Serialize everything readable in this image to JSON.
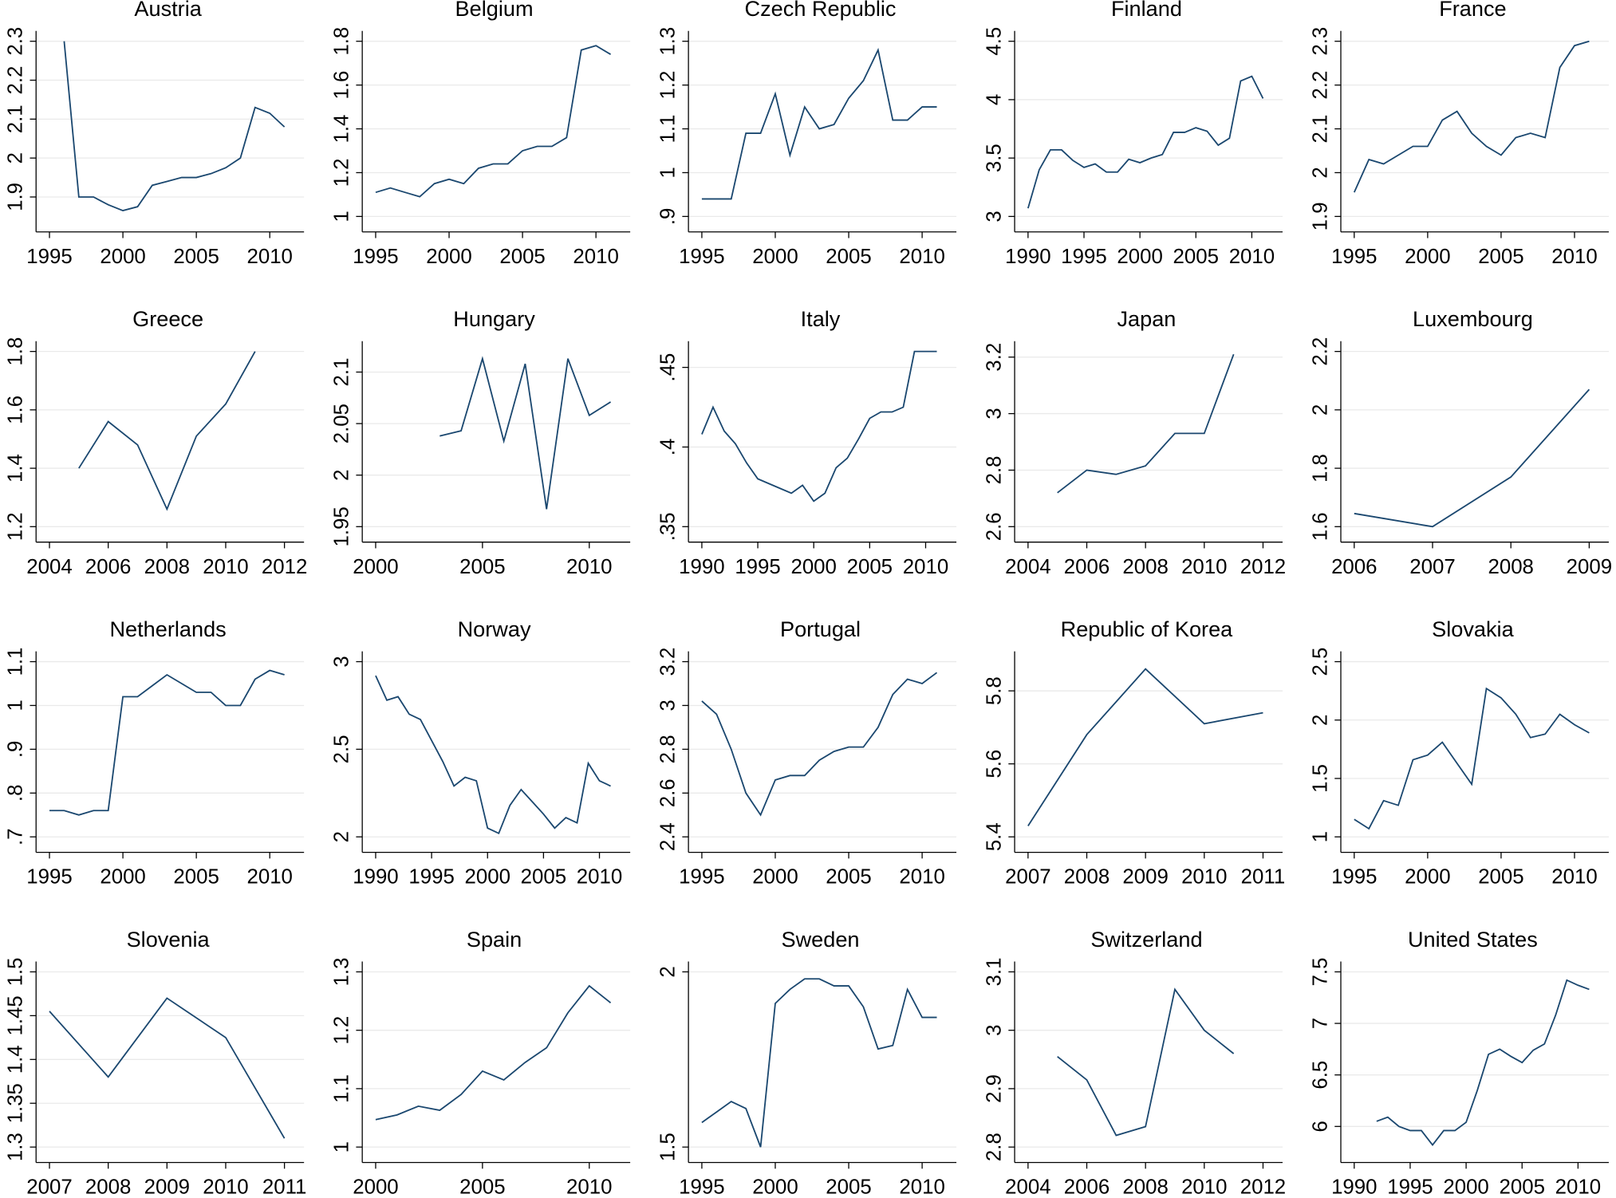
{
  "chart_data": [
    {
      "type": "line",
      "title": "Austria",
      "x": [
        1996,
        1997,
        1998,
        1999,
        2000,
        2001,
        2002,
        2003,
        2004,
        2005,
        2006,
        2007,
        2008,
        2009,
        2010,
        2011
      ],
      "values": [
        2.3,
        1.9,
        1.9,
        1.88,
        1.865,
        1.875,
        1.93,
        1.94,
        1.95,
        1.95,
        1.96,
        1.975,
        2.0,
        2.13,
        2.115,
        2.08
      ],
      "xlim": [
        1995,
        2011
      ],
      "ylim": [
        1.85,
        2.3
      ],
      "xticks": [
        1995,
        2000,
        2005,
        2010
      ],
      "yticks": [
        1.9,
        2,
        2.1,
        2.2,
        2.3
      ],
      "color": "#1a476f",
      "grid": true
    },
    {
      "type": "line",
      "title": "Belgium",
      "x": [
        1995,
        1996,
        1997,
        1998,
        1999,
        2000,
        2001,
        2002,
        2003,
        2004,
        2005,
        2006,
        2007,
        2008,
        2009,
        2010,
        2011
      ],
      "values": [
        1.11,
        1.13,
        1.11,
        1.09,
        1.15,
        1.17,
        1.15,
        1.22,
        1.24,
        1.24,
        1.3,
        1.32,
        1.32,
        1.36,
        1.76,
        1.78,
        1.74
      ],
      "xlim": [
        1995,
        2011
      ],
      "ylim": [
        1,
        1.8
      ],
      "xticks": [
        1995,
        2000,
        2005,
        2010
      ],
      "yticks": [
        1,
        1.2,
        1.4,
        1.6,
        1.8
      ],
      "color": "#1a476f",
      "grid": true
    },
    {
      "type": "line",
      "title": "Czech Republic",
      "x": [
        1995,
        1996,
        1997,
        1998,
        1999,
        2000,
        2001,
        2002,
        2003,
        2004,
        2005,
        2006,
        2007,
        2008,
        2009,
        2010,
        2011
      ],
      "values": [
        0.94,
        0.94,
        0.94,
        1.09,
        1.09,
        1.18,
        1.04,
        1.15,
        1.1,
        1.11,
        1.17,
        1.21,
        1.28,
        1.12,
        1.12,
        1.15,
        1.15
      ],
      "xlim": [
        1995,
        2011
      ],
      "ylim": [
        0.9,
        1.3
      ],
      "xticks": [
        1995,
        2000,
        2005,
        2010
      ],
      "yticks": [
        {
          "value": 0.9,
          "label": ".9"
        },
        1,
        1.1,
        1.2,
        1.3
      ],
      "color": "#1a476f",
      "grid": true
    },
    {
      "type": "line",
      "title": "Finland",
      "x": [
        1990,
        1991,
        1992,
        1993,
        1994,
        1995,
        1996,
        1997,
        1998,
        1999,
        2000,
        2001,
        2002,
        2003,
        2004,
        2005,
        2006,
        2007,
        2008,
        2009,
        2010,
        2011
      ],
      "values": [
        3.07,
        3.4,
        3.57,
        3.57,
        3.48,
        3.42,
        3.45,
        3.38,
        3.38,
        3.49,
        3.46,
        3.5,
        3.53,
        3.72,
        3.72,
        3.76,
        3.73,
        3.61,
        3.67,
        4.16,
        4.2,
        4.01
      ],
      "xlim": [
        1990,
        2011
      ],
      "ylim": [
        3,
        4.5
      ],
      "xticks": [
        1990,
        1995,
        2000,
        2005,
        2010
      ],
      "yticks": [
        3,
        3.5,
        4,
        4.5
      ],
      "color": "#1a476f",
      "grid": true
    },
    {
      "type": "line",
      "title": "France",
      "x": [
        1995,
        1996,
        1997,
        1998,
        1999,
        2000,
        2001,
        2002,
        2003,
        2004,
        2005,
        2006,
        2007,
        2008,
        2009,
        2010,
        2011
      ],
      "values": [
        1.955,
        2.03,
        2.02,
        2.04,
        2.06,
        2.06,
        2.12,
        2.14,
        2.09,
        2.06,
        2.04,
        2.08,
        2.09,
        2.08,
        2.24,
        2.29,
        2.3
      ],
      "xlim": [
        1995,
        2011
      ],
      "ylim": [
        1.9,
        2.3
      ],
      "xticks": [
        1995,
        2000,
        2005,
        2010
      ],
      "yticks": [
        1.9,
        2,
        2.1,
        2.2,
        2.3
      ],
      "color": "#1a476f",
      "grid": true
    },
    {
      "type": "line",
      "title": "Greece",
      "x": [
        2005,
        2006,
        2007,
        2008,
        2009,
        2010,
        2011
      ],
      "values": [
        1.4,
        1.56,
        1.48,
        1.26,
        1.51,
        1.62,
        1.8
      ],
      "xlim": [
        2004,
        2012
      ],
      "ylim": [
        1.2,
        1.8
      ],
      "xticks": [
        2004,
        2006,
        2008,
        2010,
        2012
      ],
      "yticks": [
        1.2,
        1.4,
        1.6,
        1.8
      ],
      "color": "#1a476f",
      "grid": true
    },
    {
      "type": "line",
      "title": "Hungary",
      "x": [
        2003,
        2004,
        2005,
        2006,
        2007,
        2008,
        2009,
        2010,
        2011
      ],
      "values": [
        2.038,
        2.043,
        2.113,
        2.033,
        2.108,
        1.967,
        2.113,
        2.058,
        2.071
      ],
      "xlim": [
        2000,
        2011
      ],
      "ylim": [
        1.95,
        2.12
      ],
      "xticks": [
        2000,
        2005,
        2010
      ],
      "yticks": [
        1.95,
        2,
        2.05,
        2.1
      ],
      "color": "#1a476f",
      "grid": true
    },
    {
      "type": "line",
      "title": "Italy",
      "x": [
        1990,
        1991,
        1992,
        1993,
        1994,
        1995,
        1996,
        1997,
        1998,
        1999,
        2000,
        2001,
        2002,
        2003,
        2004,
        2005,
        2006,
        2007,
        2008,
        2009,
        2010,
        2011
      ],
      "values": [
        0.408,
        0.425,
        0.41,
        0.402,
        0.39,
        0.38,
        0.377,
        0.374,
        0.371,
        0.376,
        0.366,
        0.371,
        0.387,
        0.393,
        0.405,
        0.418,
        0.422,
        0.422,
        0.425,
        0.46,
        0.46,
        0.46
      ],
      "xlim": [
        1990,
        2011
      ],
      "ylim": [
        0.35,
        0.46
      ],
      "xticks": [
        1990,
        1995,
        2000,
        2005,
        2010
      ],
      "yticks": [
        {
          "value": 0.35,
          "label": ".35"
        },
        {
          "value": 0.4,
          "label": ".4"
        },
        {
          "value": 0.45,
          "label": ".45"
        }
      ],
      "color": "#1a476f",
      "grid": true
    },
    {
      "type": "line",
      "title": "Japan",
      "x": [
        2005,
        2006,
        2007,
        2008,
        2009,
        2010,
        2011
      ],
      "values": [
        2.72,
        2.8,
        2.785,
        2.815,
        2.93,
        2.93,
        3.21
      ],
      "xlim": [
        2004,
        2012
      ],
      "ylim": [
        2.6,
        3.22
      ],
      "xticks": [
        2004,
        2006,
        2008,
        2010,
        2012
      ],
      "yticks": [
        2.6,
        2.8,
        3,
        3.2
      ],
      "color": "#1a476f",
      "grid": true
    },
    {
      "type": "line",
      "title": "Luxembourg",
      "x": [
        2006,
        2007,
        2008,
        2009
      ],
      "values": [
        1.645,
        1.6,
        1.77,
        2.07
      ],
      "xlim": [
        2006,
        2009
      ],
      "ylim": [
        1.6,
        2.2
      ],
      "xticks": [
        2006,
        2007,
        2008,
        2009
      ],
      "yticks": [
        1.6,
        1.8,
        2,
        2.2
      ],
      "color": "#1a476f",
      "grid": true
    },
    {
      "type": "line",
      "title": "Netherlands",
      "x": [
        1995,
        1996,
        1997,
        1998,
        1999,
        2000,
        2001,
        2002,
        2003,
        2004,
        2005,
        2006,
        2007,
        2008,
        2009,
        2010,
        2011
      ],
      "values": [
        0.76,
        0.76,
        0.75,
        0.76,
        0.76,
        1.02,
        1.02,
        1.045,
        1.07,
        1.05,
        1.03,
        1.03,
        1.0,
        1.0,
        1.06,
        1.08,
        1.07
      ],
      "xlim": [
        1995,
        2011
      ],
      "ylim": [
        0.7,
        1.1
      ],
      "xticks": [
        1995,
        2000,
        2005,
        2010
      ],
      "yticks": [
        {
          "value": 0.7,
          "label": ".7"
        },
        {
          "value": 0.8,
          "label": ".8"
        },
        {
          "value": 0.9,
          "label": ".9"
        },
        1,
        1.1
      ],
      "color": "#1a476f",
      "grid": true
    },
    {
      "type": "line",
      "title": "Norway",
      "x": [
        1990,
        1991,
        1992,
        1993,
        1994,
        1995,
        1996,
        1997,
        1998,
        1999,
        2000,
        2001,
        2002,
        2003,
        2004,
        2005,
        2006,
        2007,
        2008,
        2009,
        2010,
        2011
      ],
      "values": [
        2.92,
        2.78,
        2.8,
        2.7,
        2.67,
        2.55,
        2.43,
        2.29,
        2.34,
        2.32,
        2.05,
        2.02,
        2.18,
        2.27,
        2.2,
        2.13,
        2.05,
        2.11,
        2.08,
        2.42,
        2.32,
        2.29
      ],
      "xlim": [
        1990,
        2011
      ],
      "ylim": [
        2,
        3
      ],
      "xticks": [
        1990,
        1995,
        2000,
        2005,
        2010
      ],
      "yticks": [
        2,
        2.5,
        3
      ],
      "color": "#1a476f",
      "grid": true
    },
    {
      "type": "line",
      "title": "Portugal",
      "x": [
        1995,
        1996,
        1997,
        1998,
        1999,
        2000,
        2001,
        2002,
        2003,
        2004,
        2005,
        2006,
        2007,
        2008,
        2009,
        2010,
        2011
      ],
      "values": [
        3.02,
        2.96,
        2.8,
        2.6,
        2.5,
        2.66,
        2.68,
        2.68,
        2.75,
        2.79,
        2.81,
        2.81,
        2.9,
        3.05,
        3.12,
        3.1,
        3.15
      ],
      "xlim": [
        1995,
        2011
      ],
      "ylim": [
        2.4,
        3.2
      ],
      "xticks": [
        1995,
        2000,
        2005,
        2010
      ],
      "yticks": [
        2.4,
        2.6,
        2.8,
        3,
        3.2
      ],
      "color": "#1a476f",
      "grid": true
    },
    {
      "type": "line",
      "title": "Republic of Korea",
      "x": [
        2007,
        2008,
        2009,
        2010,
        2011
      ],
      "values": [
        5.43,
        5.68,
        5.86,
        5.71,
        5.74
      ],
      "xlim": [
        2007,
        2011
      ],
      "ylim": [
        5.4,
        5.88
      ],
      "xticks": [
        2007,
        2008,
        2009,
        2010,
        2011
      ],
      "yticks": [
        5.4,
        5.6,
        5.8
      ],
      "color": "#1a476f",
      "grid": true
    },
    {
      "type": "line",
      "title": "Slovakia",
      "x": [
        1995,
        1996,
        1997,
        1998,
        1999,
        2000,
        2001,
        2002,
        2003,
        2004,
        2005,
        2006,
        2007,
        2008,
        2009,
        2010,
        2011
      ],
      "values": [
        1.15,
        1.07,
        1.31,
        1.27,
        1.66,
        1.7,
        1.81,
        1.63,
        1.45,
        2.27,
        2.19,
        2.05,
        1.85,
        1.88,
        2.05,
        1.96,
        1.89
      ],
      "xlim": [
        1995,
        2011
      ],
      "ylim": [
        1,
        2.5
      ],
      "xticks": [
        1995,
        2000,
        2005,
        2010
      ],
      "yticks": [
        1,
        1.5,
        2,
        2.5
      ],
      "color": "#1a476f",
      "grid": true
    },
    {
      "type": "line",
      "title": "Slovenia",
      "x": [
        2007,
        2008,
        2009,
        2010,
        2011
      ],
      "values": [
        1.455,
        1.38,
        1.47,
        1.425,
        1.31
      ],
      "xlim": [
        2007,
        2011
      ],
      "ylim": [
        1.3,
        1.5
      ],
      "xticks": [
        2007,
        2008,
        2009,
        2010,
        2011
      ],
      "yticks": [
        1.3,
        1.35,
        1.4,
        1.45,
        1.5
      ],
      "color": "#1a476f",
      "grid": true
    },
    {
      "type": "line",
      "title": "Spain",
      "x": [
        2000,
        2001,
        2002,
        2003,
        2004,
        2005,
        2006,
        2007,
        2008,
        2009,
        2010,
        2011
      ],
      "values": [
        1.047,
        1.055,
        1.07,
        1.063,
        1.09,
        1.13,
        1.115,
        1.145,
        1.17,
        1.23,
        1.276,
        1.247
      ],
      "xlim": [
        2000,
        2011
      ],
      "ylim": [
        1,
        1.3
      ],
      "xticks": [
        2000,
        2005,
        2010
      ],
      "yticks": [
        1,
        1.1,
        1.2,
        1.3
      ],
      "color": "#1a476f",
      "grid": true
    },
    {
      "type": "line",
      "title": "Sweden",
      "x": [
        1995,
        1996,
        1997,
        1998,
        1999,
        2000,
        2001,
        2002,
        2003,
        2004,
        2005,
        2006,
        2007,
        2008,
        2009,
        2010,
        2011
      ],
      "values": [
        1.57,
        1.6,
        1.63,
        1.61,
        1.5,
        1.91,
        1.95,
        1.98,
        1.98,
        1.96,
        1.96,
        1.9,
        1.78,
        1.79,
        1.95,
        1.87,
        1.87
      ],
      "xlim": [
        1995,
        2011
      ],
      "ylim": [
        1.5,
        2
      ],
      "xticks": [
        1995,
        2000,
        2005,
        2010
      ],
      "yticks": [
        1.5,
        2
      ],
      "color": "#1a476f",
      "grid": true
    },
    {
      "type": "line",
      "title": "Switzerland",
      "x": [
        2005,
        2006,
        2007,
        2008,
        2009,
        2010,
        2011
      ],
      "values": [
        2.955,
        2.915,
        2.82,
        2.835,
        3.07,
        3.0,
        2.96
      ],
      "xlim": [
        2004,
        2012
      ],
      "ylim": [
        2.8,
        3.1
      ],
      "xticks": [
        2004,
        2006,
        2008,
        2010,
        2012
      ],
      "yticks": [
        2.8,
        2.9,
        3,
        3.1
      ],
      "color": "#1a476f",
      "grid": true
    },
    {
      "type": "line",
      "title": "United States",
      "x": [
        1992,
        1993,
        1994,
        1995,
        1996,
        1997,
        1998,
        1999,
        2000,
        2001,
        2002,
        2003,
        2004,
        2005,
        2006,
        2007,
        2008,
        2009,
        2010,
        2011
      ],
      "values": [
        6.05,
        6.09,
        6.0,
        5.96,
        5.96,
        5.82,
        5.96,
        5.96,
        6.04,
        6.35,
        6.7,
        6.75,
        6.68,
        6.62,
        6.74,
        6.8,
        7.08,
        7.42,
        7.37,
        7.33
      ],
      "xlim": [
        1990,
        2011
      ],
      "ylim": [
        5.8,
        7.5
      ],
      "xticks": [
        1990,
        1995,
        2000,
        2005,
        2010
      ],
      "yticks": [
        6,
        6.5,
        7,
        7.5
      ],
      "color": "#1a476f",
      "grid": true
    }
  ]
}
